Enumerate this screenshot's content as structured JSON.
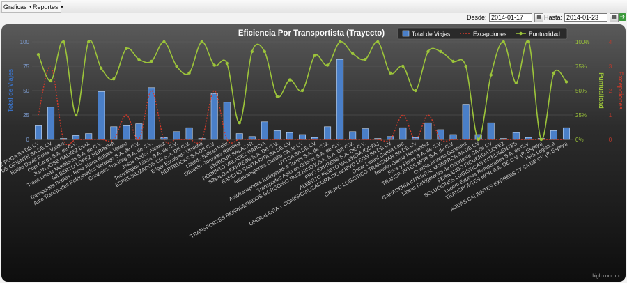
{
  "menu": {
    "items": [
      {
        "label": "Graficas"
      },
      {
        "label": "Reportes"
      }
    ]
  },
  "filters": {
    "desde_label": "Desde:",
    "desde_value": "2014-01-17",
    "hasta_label": "Hasta:",
    "hasta_value": "2014-01-23"
  },
  "credit": "high.com.mx",
  "colors": {
    "bars": "#4a7fc8",
    "excepciones": "#d23a2a",
    "puntualidad": "#9cc43a",
    "left_axis": "#3a6fbf",
    "right_axis": "#9cc43a",
    "far_right_axis": "#c0392b"
  },
  "chart_data": {
    "type": "bar",
    "title": "Eficiencia Por Transportista (Trayecto)",
    "legend_position": "top-right",
    "ylabel_left": "Total de Viajes",
    "ylabel_right": "Puntualidad",
    "ylabel_far_right": "Excepciones",
    "left_ticks": [
      "0",
      "25",
      "50",
      "75",
      "100"
    ],
    "right_ticks": [
      "0%",
      "25%",
      "50%",
      "75%",
      "100%"
    ],
    "far_right_ticks": [
      "0",
      "1",
      "2",
      "3",
      "4"
    ],
    "ylim_left": [
      0,
      100
    ],
    "ylim_right": [
      0,
      100
    ],
    "ylim_far_right": [
      0,
      4
    ],
    "categories": [
      "ALAIN LOPEZ PUGA SA DE CV",
      "TRANSPORTES TADOMIRA DE ORIENTE SA DE CV",
      "Rutilio David Rojas Valdes",
      "Copi Cargo S.A. de C.V.",
      "JUAN JOSE GALVEZ DIAZ",
      "Trans Lineas Muebleras S.A. de C.V.",
      "GILBERTO LOPEZ HERRERA",
      "Transportes Robles - Rosa Maria Robles Valdes",
      "Auto Transportes Refrigerados Verdugo S.A. de C.V.",
      "Gonzalez Trucking S.A. de C.V.",
      "Jesus Godoy Alcaraz",
      "Tecnologias Diasa S.A. de C.V.",
      "ESPECIALIZADOS CG S.A. DE C.V.",
      "Edgar Escobedo Urrecha",
      "HERTRUCKS S.A DE C.V.",
      "Lizardo Beltran Felix",
      "Eduardo Gonzalez Ramirez",
      "ENRIQUE SALAZAR",
      "ROBERTO VALADEZ GARCIA",
      "SINALOA EXPRESS S.A. DE C.V.",
      "RANCHO SANTA RITA SA DE CV",
      "Autotransportes Castillo SA de CV",
      "UTTSA SA DE CV",
      "Autotransportes Refrigerados Torres S.A. de C.V.",
      "Transportes Agila de Oriente S.A. de C.V.",
      "TRANSPORTES REFRIGERADOS GORGONIO RUIZ HINOJOSA, S.A. DE C.V.",
      "FRIO EXPRESS S.A. DE C.V.",
      "ALBERTO PRIETO VALENCIA (QDAL)",
      "OPERADORA Y COMERCIALIZADORA DE NUEVO LEON SA DE CV",
      "Oscar Daniel Garcia Lara",
      "GRUPO LOGISTICO TRANSMAR SA DE CV",
      "Rodolfo Garcia Hernandez",
      "Frios y Fletes S.A. de C.V.",
      "TRANSPORTES MOR S.A. de C.V.",
      "Cynthia Moreno Gonzalez",
      "GANADERIA INTEGRAL MONARCA SA DE CV",
      "Lineas Refrigeradas de Occidente SA de CV",
      "FERNANDO FIGUEROA LOPEZ",
      "SOLUCIONES LOGISTICAS INTELIGENTES",
      "Lucero Express Refrigerados S.A. de C.V.",
      "TRANSPORTES MOR S.A. DE C.V. (P. Espejo)",
      "HPS Logistica",
      "AGUAS CALIENTES EXPRESS 77 SA DE CV (P. Espejo)"
    ],
    "series": [
      {
        "name": "Total de Viajes",
        "type": "bar",
        "axis": "left",
        "values": [
          14,
          33,
          1,
          4,
          6,
          49,
          13,
          14,
          16,
          53,
          2,
          8,
          12,
          1,
          47,
          38,
          6,
          3,
          18,
          9,
          7,
          5,
          2,
          13,
          82,
          8,
          11,
          1,
          3,
          12,
          2,
          17,
          10,
          5,
          36,
          5,
          17,
          1,
          7,
          2,
          1,
          9,
          12
        ]
      },
      {
        "name": "Excepciones",
        "type": "line",
        "axis": "far_right",
        "values": [
          1,
          3,
          0,
          0,
          0,
          0,
          0,
          1,
          0,
          2,
          0,
          0,
          0,
          0,
          2,
          0,
          0,
          0,
          0,
          0,
          0,
          0,
          0,
          0,
          0,
          0,
          0,
          0,
          0,
          1,
          0,
          1,
          0,
          0,
          0,
          0,
          0,
          0,
          0,
          0,
          0,
          0,
          0
        ]
      },
      {
        "name": "Puntualidad",
        "type": "line",
        "axis": "right",
        "values": [
          87,
          60,
          100,
          25,
          100,
          73,
          62,
          93,
          82,
          80,
          100,
          75,
          68,
          100,
          76,
          78,
          17,
          90,
          90,
          44,
          61,
          50,
          86,
          76,
          100,
          88,
          82,
          100,
          68,
          75,
          50,
          90,
          90,
          80,
          75,
          0,
          66,
          100,
          58,
          100,
          0,
          68,
          59
        ]
      }
    ]
  }
}
